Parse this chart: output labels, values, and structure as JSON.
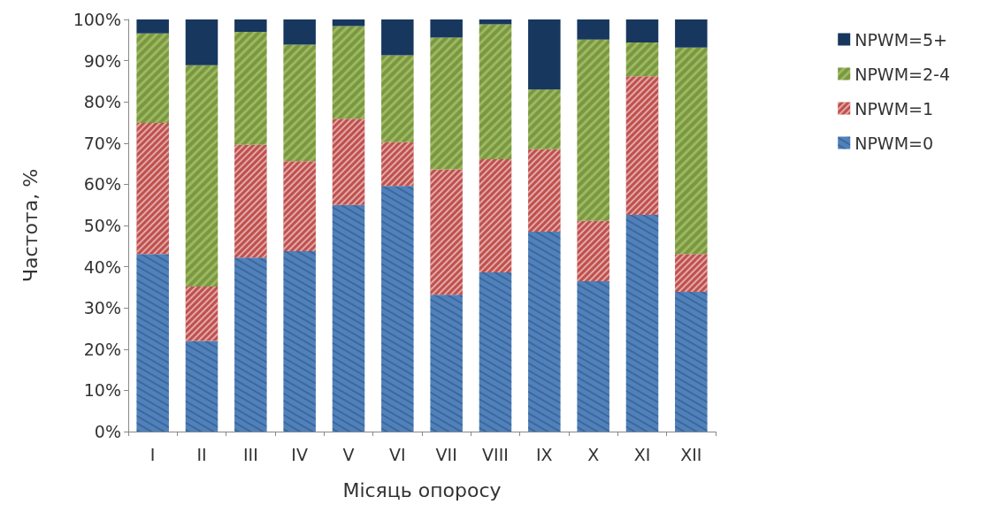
{
  "chart_data": {
    "type": "bar",
    "stacked": true,
    "xlabel": "Місяць опоросу",
    "ylabel": "Частота, %",
    "categories": [
      "I",
      "II",
      "III",
      "IV",
      "V",
      "VI",
      "VII",
      "VIII",
      "IX",
      "X",
      "XI",
      "XII"
    ],
    "series": [
      {
        "name": "NPWM=0",
        "color": "#4f81bd",
        "values": [
          43.1,
          22.0,
          42.2,
          43.8,
          55.0,
          59.6,
          33.2,
          38.6,
          48.5,
          36.5,
          52.6,
          33.9
        ]
      },
      {
        "name": "NPWM=1",
        "color": "#c0504d",
        "values": [
          31.8,
          13.2,
          27.4,
          21.8,
          20.9,
          10.6,
          30.4,
          27.5,
          20.0,
          14.6,
          33.6,
          9.2
        ]
      },
      {
        "name": "NPWM=2-4",
        "color": "#9bbb59",
        "values": [
          21.7,
          53.7,
          27.4,
          28.3,
          22.5,
          21.1,
          32.0,
          32.7,
          14.5,
          44.0,
          8.2,
          50.1
        ]
      },
      {
        "name": "NPWM=5+",
        "color": "#17375e",
        "values": [
          3.4,
          11.1,
          3.0,
          6.1,
          1.6,
          8.7,
          4.4,
          1.2,
          17.0,
          4.9,
          5.6,
          6.8
        ]
      }
    ],
    "ylim": [
      0,
      100
    ],
    "yticks": [
      {
        "value": 0,
        "label": "0%"
      },
      {
        "value": 10,
        "label": "10%"
      },
      {
        "value": 20,
        "label": "20%"
      },
      {
        "value": 30,
        "label": "30%"
      },
      {
        "value": 40,
        "label": "40%"
      },
      {
        "value": 50,
        "label": "50%"
      },
      {
        "value": 60,
        "label": "60%"
      },
      {
        "value": 70,
        "label": "70%"
      },
      {
        "value": 80,
        "label": "80%"
      },
      {
        "value": 90,
        "label": "90%"
      },
      {
        "value": 100,
        "label": "100%"
      }
    ],
    "grid": false,
    "legend": "right"
  }
}
